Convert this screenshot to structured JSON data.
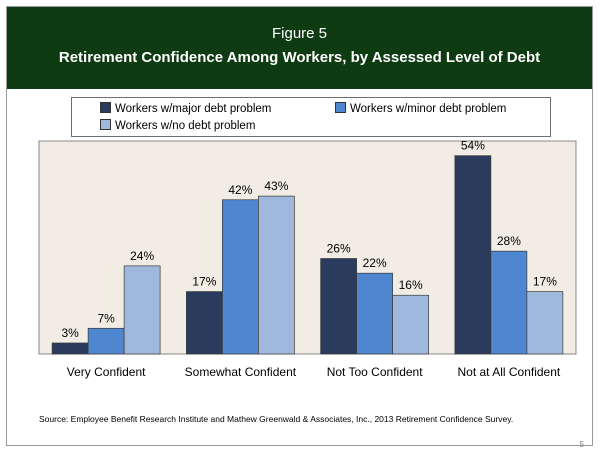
{
  "header": {
    "figure_label": "Figure 5",
    "title": "Retirement Confidence Among Workers, by Assessed Level of Debt"
  },
  "chart_data": {
    "type": "bar",
    "title": "Retirement Confidence Among Workers, by Assessed Level of Debt",
    "categories": [
      "Very Confident",
      "Somewhat Confident",
      "Not Too Confident",
      "Not at All Confident"
    ],
    "series": [
      {
        "name": "Workers w/major debt problem",
        "values": [
          3,
          17,
          26,
          54
        ],
        "labels": [
          "3%",
          "17%",
          "26%",
          "54%"
        ],
        "color": "#2b3b5e"
      },
      {
        "name": "Workers w/minor debt problem",
        "values": [
          7,
          42,
          22,
          28
        ],
        "labels": [
          "7%",
          "42%",
          "22%",
          "28%"
        ],
        "color": "#4f86d0"
      },
      {
        "name": "Workers w/no debt problem",
        "values": [
          24,
          43,
          16,
          17
        ],
        "labels": [
          "24%",
          "43%",
          "16%",
          "17%"
        ],
        "color": "#9fb8dc"
      }
    ],
    "ylim": [
      0,
      58
    ],
    "xlabel": "",
    "ylabel": "",
    "grid": false,
    "legend": "top",
    "plot_background": "#f2ede4"
  },
  "source": "Source:  Employee Benefit Research Institute and Mathew Greenwald & Associates, Inc., 2013 Retirement Confidence Survey.",
  "page_number": "5"
}
